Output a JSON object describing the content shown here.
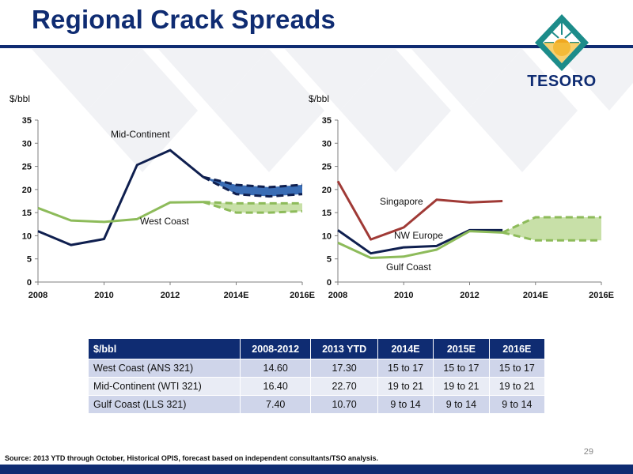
{
  "header": {
    "title": "Regional Crack Spreads"
  },
  "logo": {
    "text": "TESORO",
    "colors": {
      "teal": "#1c8c8a",
      "gold": "#f0a820",
      "navy": "#0f2c72"
    }
  },
  "chart_data": [
    {
      "type": "line",
      "ylabel": "$/bbl",
      "xlim": [
        2008,
        2016
      ],
      "ylim": [
        0,
        35
      ],
      "x_ticks": [
        "2008",
        "2010",
        "2012",
        "2014E",
        "2016E"
      ],
      "y_ticks": [
        "0",
        "5",
        "10",
        "15",
        "20",
        "25",
        "30",
        "35"
      ],
      "grid": false,
      "series": [
        {
          "name": "Mid-Continent",
          "color": "#0f1f4f",
          "x": [
            2008,
            2009,
            2010,
            2011,
            2012,
            2013
          ],
          "values": [
            11,
            8,
            9.3,
            25.3,
            28.5,
            22.7
          ],
          "forecast_x": [
            2013,
            2014,
            2015,
            2016
          ],
          "forecast_low": [
            22.7,
            19,
            18.5,
            19
          ],
          "forecast_high": [
            22.7,
            21,
            20.5,
            21
          ],
          "band_color": "#3a6db5"
        },
        {
          "name": "West Coast",
          "color": "#8dbb5a",
          "x": [
            2008,
            2009,
            2010,
            2011,
            2012,
            2013
          ],
          "values": [
            16,
            13.3,
            13,
            13.6,
            17.2,
            17.3
          ],
          "forecast_x": [
            2013,
            2014,
            2015,
            2016
          ],
          "forecast_low": [
            17.3,
            15,
            15,
            15.3
          ],
          "forecast_high": [
            17.3,
            17,
            17,
            17
          ],
          "band_color": "#c8e0a8"
        }
      ]
    },
    {
      "type": "line",
      "ylabel": "$/bbl",
      "xlim": [
        2008,
        2016
      ],
      "ylim": [
        0,
        35
      ],
      "x_ticks": [
        "2008",
        "2010",
        "2012",
        "2014E",
        "2016E"
      ],
      "y_ticks": [
        "0",
        "5",
        "10",
        "15",
        "20",
        "25",
        "30",
        "35"
      ],
      "grid": false,
      "series": [
        {
          "name": "Singapore",
          "color": "#a03a36",
          "x": [
            2008,
            2009,
            2010,
            2011,
            2012,
            2013
          ],
          "values": [
            21.8,
            9.2,
            11.8,
            17.8,
            17.2,
            17.5
          ]
        },
        {
          "name": "NW Europe",
          "color": "#0f1f4f",
          "x": [
            2008,
            2009,
            2010,
            2011,
            2012,
            2013
          ],
          "values": [
            11.2,
            6.2,
            7.5,
            7.8,
            11.2,
            11.2
          ]
        },
        {
          "name": "Gulf Coast",
          "color": "#8dbb5a",
          "x": [
            2008,
            2009,
            2010,
            2011,
            2012,
            2013
          ],
          "values": [
            8.5,
            5.2,
            5.5,
            7,
            11,
            10.7
          ],
          "forecast_x": [
            2013,
            2014,
            2015,
            2016
          ],
          "forecast_low": [
            10.7,
            9,
            9,
            9
          ],
          "forecast_high": [
            10.7,
            14,
            14,
            14
          ],
          "band_color": "#c8e0a8"
        }
      ]
    }
  ],
  "table": {
    "headers": [
      "$/bbl",
      "2008-2012",
      "2013 YTD",
      "2014E",
      "2015E",
      "2016E"
    ],
    "rows": [
      [
        "West Coast (ANS 321)",
        "14.60",
        "17.30",
        "15 to 17",
        "15 to 17",
        "15 to 17"
      ],
      [
        "Mid-Continent (WTI 321)",
        "16.40",
        "22.70",
        "19 to 21",
        "19 to 21",
        "19 to 21"
      ],
      [
        "Gulf Coast (LLS 321)",
        "7.40",
        "10.70",
        "9 to 14",
        "9 to 14",
        "9 to 14"
      ]
    ]
  },
  "footer": {
    "page_number": "29",
    "source": "Source: 2013 YTD through October, Historical OPIS, forecast based on independent consultants/TSO analysis."
  }
}
